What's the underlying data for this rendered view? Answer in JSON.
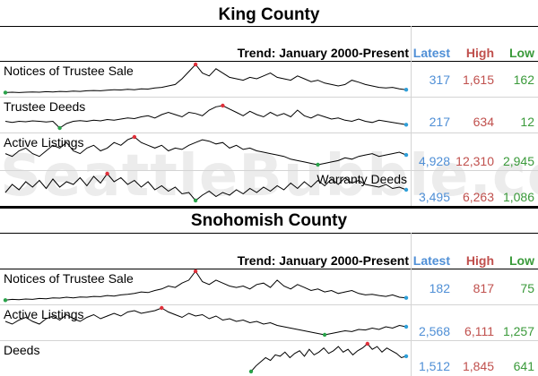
{
  "watermark": "SeattleBubble.com",
  "sections": [
    {
      "title": "King County",
      "trend_label": "Trend: January 2000-Present",
      "col_latest": "Latest",
      "col_high": "High",
      "col_low": "Low",
      "rows": [
        {
          "label": "Notices of Trustee Sale",
          "latest": "317",
          "high": "1,615",
          "low": "162",
          "series": [
            0.02,
            0.03,
            0.02,
            0.03,
            0.04,
            0.03,
            0.05,
            0.04,
            0.06,
            0.05,
            0.07,
            0.06,
            0.08,
            0.09,
            0.08,
            0.1,
            0.12,
            0.11,
            0.13,
            0.12,
            0.15,
            0.14,
            0.18,
            0.2,
            0.25,
            0.3,
            0.5,
            0.75,
            1.0,
            0.7,
            0.6,
            0.85,
            0.7,
            0.55,
            0.5,
            0.45,
            0.55,
            0.5,
            0.6,
            0.7,
            0.55,
            0.5,
            0.45,
            0.6,
            0.5,
            0.4,
            0.45,
            0.35,
            0.3,
            0.25,
            0.3,
            0.45,
            0.38,
            0.3,
            0.25,
            0.2,
            0.18,
            0.2,
            0.15,
            0.12
          ]
        },
        {
          "label": "Trustee Deeds",
          "latest": "217",
          "high": "634",
          "low": "12",
          "series": [
            0.3,
            0.25,
            0.3,
            0.28,
            0.32,
            0.3,
            0.27,
            0.3,
            0.0,
            0.2,
            0.3,
            0.33,
            0.3,
            0.35,
            0.32,
            0.38,
            0.35,
            0.4,
            0.45,
            0.42,
            0.5,
            0.55,
            0.45,
            0.6,
            0.7,
            0.6,
            0.5,
            0.7,
            0.65,
            0.55,
            0.8,
            0.95,
            1.0,
            0.85,
            0.7,
            0.55,
            0.75,
            0.6,
            0.5,
            0.7,
            0.55,
            0.65,
            0.5,
            0.8,
            0.55,
            0.45,
            0.6,
            0.5,
            0.4,
            0.45,
            0.35,
            0.3,
            0.4,
            0.3,
            0.25,
            0.35,
            0.3,
            0.25,
            0.2,
            0.15
          ]
        },
        {
          "label": "Active Listings",
          "latest": "4,928",
          "high": "12,310",
          "low": "2,945",
          "series": [
            0.4,
            0.3,
            0.5,
            0.6,
            0.4,
            0.3,
            0.5,
            0.7,
            0.6,
            0.8,
            0.5,
            0.4,
            0.6,
            0.7,
            0.5,
            0.6,
            0.8,
            0.7,
            0.9,
            1.0,
            0.8,
            0.7,
            0.6,
            0.7,
            0.5,
            0.6,
            0.55,
            0.7,
            0.8,
            0.9,
            0.85,
            0.75,
            0.8,
            0.6,
            0.7,
            0.55,
            0.6,
            0.5,
            0.45,
            0.4,
            0.35,
            0.3,
            0.2,
            0.15,
            0.1,
            0.05,
            0.0,
            0.05,
            0.1,
            0.15,
            0.25,
            0.2,
            0.3,
            0.35,
            0.4,
            0.3,
            0.35,
            0.4,
            0.45,
            0.35
          ]
        },
        {
          "label": "Warranty Deeds",
          "label_align": "right",
          "latest": "3,495",
          "high": "6,263",
          "low": "1,086",
          "series": [
            0.3,
            0.6,
            0.4,
            0.7,
            0.5,
            0.75,
            0.45,
            0.8,
            0.5,
            0.7,
            0.6,
            0.85,
            0.55,
            0.9,
            0.65,
            1.0,
            0.7,
            0.85,
            0.6,
            0.75,
            0.5,
            0.7,
            0.4,
            0.55,
            0.35,
            0.5,
            0.25,
            0.3,
            0.0,
            0.2,
            0.35,
            0.15,
            0.3,
            0.2,
            0.4,
            0.25,
            0.45,
            0.3,
            0.5,
            0.35,
            0.55,
            0.4,
            0.65,
            0.45,
            0.7,
            0.5,
            0.75,
            0.55,
            0.8,
            0.6,
            0.85,
            0.65,
            0.75,
            0.6,
            0.55,
            0.5,
            0.6,
            0.45,
            0.5,
            0.4
          ]
        }
      ]
    },
    {
      "title": "Snohomish County",
      "trend_label": "Trend: January 2000-Present",
      "col_latest": "Latest",
      "col_high": "High",
      "col_low": "Low",
      "rows": [
        {
          "label": "Notices of Trustee Sale",
          "latest": "182",
          "high": "817",
          "low": "75",
          "series": [
            0.02,
            0.05,
            0.04,
            0.06,
            0.05,
            0.08,
            0.07,
            0.1,
            0.09,
            0.12,
            0.1,
            0.13,
            0.12,
            0.15,
            0.14,
            0.18,
            0.16,
            0.2,
            0.22,
            0.25,
            0.3,
            0.28,
            0.35,
            0.4,
            0.5,
            0.45,
            0.6,
            0.7,
            1.0,
            0.65,
            0.55,
            0.7,
            0.6,
            0.5,
            0.45,
            0.5,
            0.4,
            0.55,
            0.6,
            0.45,
            0.7,
            0.5,
            0.4,
            0.55,
            0.45,
            0.35,
            0.4,
            0.3,
            0.35,
            0.25,
            0.3,
            0.35,
            0.25,
            0.2,
            0.22,
            0.18,
            0.15,
            0.2,
            0.12,
            0.1
          ]
        },
        {
          "label": "Active Listings",
          "latest": "2,568",
          "high": "6,111",
          "low": "1,257",
          "series": [
            0.5,
            0.4,
            0.55,
            0.65,
            0.5,
            0.4,
            0.6,
            0.7,
            0.55,
            0.75,
            0.6,
            0.5,
            0.65,
            0.75,
            0.6,
            0.7,
            0.8,
            0.7,
            0.85,
            0.9,
            0.8,
            0.85,
            0.9,
            1.0,
            0.85,
            0.75,
            0.65,
            0.8,
            0.7,
            0.75,
            0.6,
            0.7,
            0.55,
            0.6,
            0.5,
            0.55,
            0.45,
            0.5,
            0.4,
            0.45,
            0.35,
            0.3,
            0.25,
            0.2,
            0.15,
            0.1,
            0.05,
            0.0,
            0.05,
            0.1,
            0.15,
            0.12,
            0.2,
            0.18,
            0.25,
            0.2,
            0.3,
            0.25,
            0.35,
            0.3
          ]
        },
        {
          "label": "Deeds",
          "latest": "1,512",
          "high": "1,845",
          "low": "641",
          "series": [
            0.0,
            0.2,
            0.35,
            0.5,
            0.4,
            0.6,
            0.55,
            0.7,
            0.5,
            0.65,
            0.75,
            0.55,
            0.8,
            0.6,
            0.7,
            0.85,
            0.65,
            0.75,
            0.9,
            0.7,
            0.8,
            0.6,
            0.75,
            0.85,
            1.0,
            0.8,
            0.9,
            0.7,
            0.85,
            0.75,
            0.65,
            0.5,
            0.55
          ]
        }
      ]
    }
  ]
}
